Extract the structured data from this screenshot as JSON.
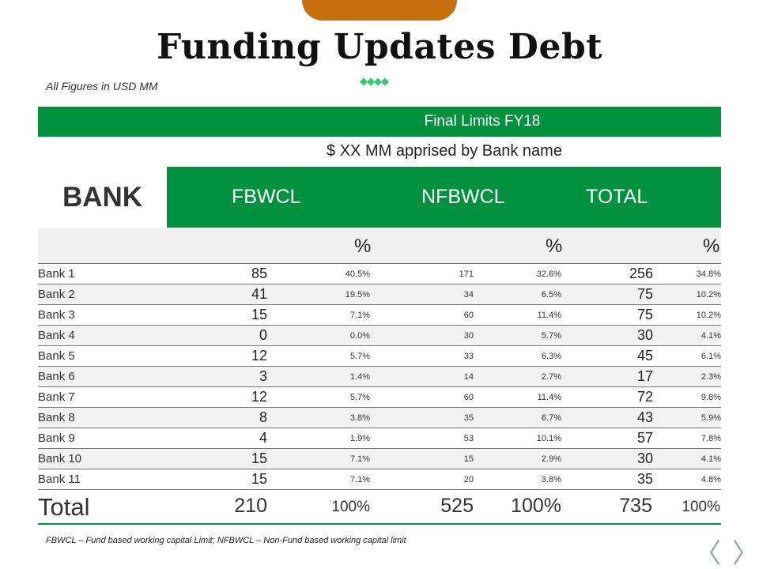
{
  "title": "Funding Updates Debt",
  "subtitle": "All Figures in USD MM",
  "diamonds": "◆◆◆◆",
  "banner": "Final Limits FY18",
  "apprised": "$ XX MM apprised by Bank name",
  "header": {
    "bank": "BANK",
    "col1": "FBWCL",
    "col2": "NFBWCL",
    "col3": "TOTAL"
  },
  "pct_symbol": "%",
  "rows": [
    {
      "bank": "Bank 1",
      "fb": "85",
      "fb_pct": "40.5%",
      "nfb": "171",
      "nfb_pct": "32.6%",
      "total": "256",
      "total_pct": "34.8%"
    },
    {
      "bank": "Bank 2",
      "fb": "41",
      "fb_pct": "19.5%",
      "nfb": "34",
      "nfb_pct": "6.5%",
      "total": "75",
      "total_pct": "10.2%"
    },
    {
      "bank": "Bank 3",
      "fb": "15",
      "fb_pct": "7.1%",
      "nfb": "60",
      "nfb_pct": "11.4%",
      "total": "75",
      "total_pct": "10.2%"
    },
    {
      "bank": "Bank 4",
      "fb": "0",
      "fb_pct": "0.0%",
      "nfb": "30",
      "nfb_pct": "5.7%",
      "total": "30",
      "total_pct": "4.1%"
    },
    {
      "bank": "Bank 5",
      "fb": "12",
      "fb_pct": "5.7%",
      "nfb": "33",
      "nfb_pct": "6.3%",
      "total": "45",
      "total_pct": "6.1%"
    },
    {
      "bank": "Bank 6",
      "fb": "3",
      "fb_pct": "1.4%",
      "nfb": "14",
      "nfb_pct": "2.7%",
      "total": "17",
      "total_pct": "2.3%"
    },
    {
      "bank": "Bank 7",
      "fb": "12",
      "fb_pct": "5.7%",
      "nfb": "60",
      "nfb_pct": "11.4%",
      "total": "72",
      "total_pct": "9.8%"
    },
    {
      "bank": "Bank 8",
      "fb": "8",
      "fb_pct": "3.8%",
      "nfb": "35",
      "nfb_pct": "6.7%",
      "total": "43",
      "total_pct": "5.9%"
    },
    {
      "bank": "Bank 9",
      "fb": "4",
      "fb_pct": "1.9%",
      "nfb": "53",
      "nfb_pct": "10.1%",
      "total": "57",
      "total_pct": "7.8%"
    },
    {
      "bank": "Bank 10",
      "fb": "15",
      "fb_pct": "7.1%",
      "nfb": "15",
      "nfb_pct": "2.9%",
      "total": "30",
      "total_pct": "4.1%"
    },
    {
      "bank": "Bank 11",
      "fb": "15",
      "fb_pct": "7.1%",
      "nfb": "20",
      "nfb_pct": "3.8%",
      "total": "35",
      "total_pct": "4.8%"
    }
  ],
  "total": {
    "label": "Total",
    "fb": "210",
    "fb_pct": "100%",
    "nfb": "525",
    "nfb_pct": "100%",
    "total": "735",
    "total_pct": "100%"
  },
  "footnote": "FBWCL – Fund based working capital Limit; NFBWCL – Non-Fund based working capital limit",
  "nav": {
    "prev": "〈",
    "next": "〉"
  },
  "colors": {
    "green": "#00923f",
    "accent_orange": "#c8700f",
    "diamond": "#2ecc71"
  }
}
